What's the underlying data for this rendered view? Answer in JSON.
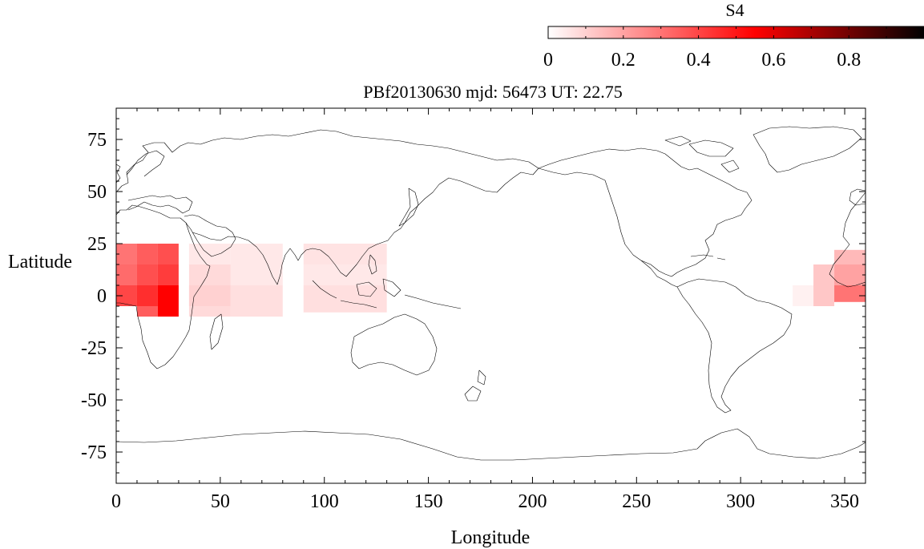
{
  "title": "PBf20130630  mjd: 56473  UT:  22.75",
  "colorbar": {
    "label": "S4",
    "ticks": [
      "0",
      "0.2",
      "0.4",
      "0.6",
      "0.8"
    ],
    "tick_values": [
      0,
      0.2,
      0.4,
      0.6,
      0.8
    ],
    "range": [
      0,
      1
    ],
    "colors": [
      "#ffffff",
      "#ff0000",
      "#000000"
    ]
  },
  "chart_data": {
    "type": "heatmap",
    "title": "PBf20130630  mjd: 56473  UT:  22.75",
    "xlabel": "Longitude",
    "ylabel": "Latitude",
    "xlim": [
      0,
      360
    ],
    "ylim": [
      -90,
      90
    ],
    "x_ticks": [
      "0",
      "50",
      "100",
      "150",
      "200",
      "250",
      "300",
      "350"
    ],
    "x_tick_values": [
      0,
      50,
      100,
      150,
      200,
      250,
      300,
      350
    ],
    "y_ticks": [
      "75",
      "50",
      "25",
      "0",
      "-25",
      "-50",
      "-75"
    ],
    "y_tick_values": [
      75,
      50,
      25,
      0,
      -25,
      -50,
      -75
    ],
    "colorbar_label": "S4",
    "cells": [
      {
        "lon": [
          0,
          10
        ],
        "lat": [
          15,
          25
        ],
        "s4": 0.3
      },
      {
        "lon": [
          10,
          20
        ],
        "lat": [
          15,
          25
        ],
        "s4": 0.35
      },
      {
        "lon": [
          20,
          30
        ],
        "lat": [
          15,
          25
        ],
        "s4": 0.38
      },
      {
        "lon": [
          0,
          10
        ],
        "lat": [
          5,
          15
        ],
        "s4": 0.32
      },
      {
        "lon": [
          10,
          20
        ],
        "lat": [
          5,
          15
        ],
        "s4": 0.38
      },
      {
        "lon": [
          20,
          30
        ],
        "lat": [
          5,
          15
        ],
        "s4": 0.42
      },
      {
        "lon": [
          0,
          10
        ],
        "lat": [
          -5,
          5
        ],
        "s4": 0.4
      },
      {
        "lon": [
          10,
          20
        ],
        "lat": [
          -5,
          5
        ],
        "s4": 0.45
      },
      {
        "lon": [
          20,
          30
        ],
        "lat": [
          -5,
          5
        ],
        "s4": 0.55
      },
      {
        "lon": [
          10,
          20
        ],
        "lat": [
          -10,
          -5
        ],
        "s4": 0.35
      },
      {
        "lon": [
          20,
          30
        ],
        "lat": [
          -10,
          -5
        ],
        "s4": 0.55
      },
      {
        "lon": [
          35,
          55
        ],
        "lat": [
          15,
          25
        ],
        "s4": 0.05
      },
      {
        "lon": [
          35,
          55
        ],
        "lat": [
          5,
          15
        ],
        "s4": 0.08
      },
      {
        "lon": [
          35,
          55
        ],
        "lat": [
          -5,
          5
        ],
        "s4": 0.1
      },
      {
        "lon": [
          35,
          55
        ],
        "lat": [
          -10,
          -5
        ],
        "s4": 0.08
      },
      {
        "lon": [
          55,
          80
        ],
        "lat": [
          5,
          25
        ],
        "s4": 0.05
      },
      {
        "lon": [
          55,
          80
        ],
        "lat": [
          -10,
          5
        ],
        "s4": 0.07
      },
      {
        "lon": [
          90,
          130
        ],
        "lat": [
          15,
          25
        ],
        "s4": 0.06
      },
      {
        "lon": [
          90,
          130
        ],
        "lat": [
          5,
          15
        ],
        "s4": 0.05
      },
      {
        "lon": [
          90,
          130
        ],
        "lat": [
          -8,
          5
        ],
        "s4": 0.07
      },
      {
        "lon": [
          325,
          335
        ],
        "lat": [
          -5,
          5
        ],
        "s4": 0.03
      },
      {
        "lon": [
          335,
          345
        ],
        "lat": [
          -5,
          15
        ],
        "s4": 0.12
      },
      {
        "lon": [
          345,
          360
        ],
        "lat": [
          15,
          22
        ],
        "s4": 0.15
      },
      {
        "lon": [
          345,
          360
        ],
        "lat": [
          5,
          15
        ],
        "s4": 0.2
      },
      {
        "lon": [
          345,
          360
        ],
        "lat": [
          -3,
          5
        ],
        "s4": 0.3
      }
    ]
  }
}
